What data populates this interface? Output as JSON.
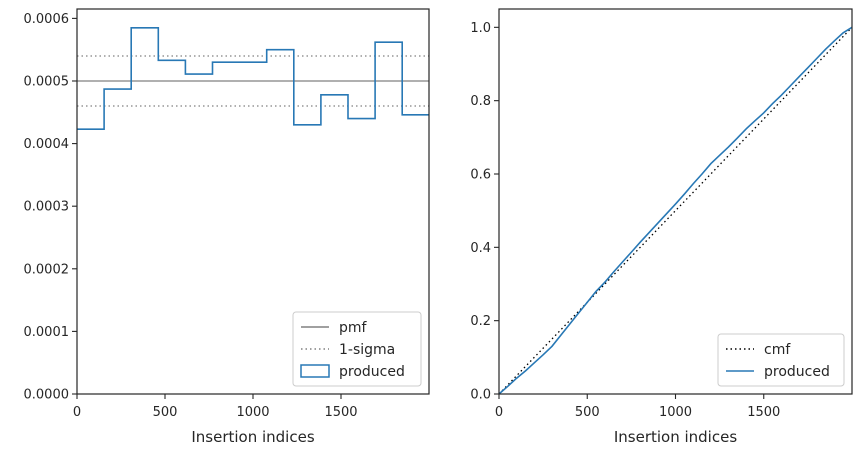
{
  "chart_data": [
    {
      "type": "line",
      "xlabel": "Insertion indices",
      "ylabel": "",
      "xlim": [
        0,
        2000
      ],
      "ylim": [
        0,
        0.000615
      ],
      "x_ticks": [
        0,
        500,
        1000,
        1500
      ],
      "x_tick_labels": [
        "0",
        "500",
        "1000",
        "1500"
      ],
      "y_ticks": [
        0,
        0.0001,
        0.0002,
        0.0003,
        0.0004,
        0.0005,
        0.0006
      ],
      "y_tick_labels": [
        "0.0000",
        "0.0001",
        "0.0002",
        "0.0003",
        "0.0004",
        "0.0005",
        "0.0006"
      ],
      "legend_position": "lower-right",
      "legend": [
        "pmf",
        "1-sigma",
        "produced"
      ],
      "series": [
        {
          "name": "pmf",
          "style": "solid",
          "color": "#808080",
          "x": [
            0,
            2000
          ],
          "y": [
            0.0005,
            0.0005
          ]
        },
        {
          "name": "1-sigma",
          "style": "dotted",
          "color": "#808080",
          "x": [
            0,
            2000
          ],
          "y": [
            0.00054,
            0.00054
          ]
        },
        {
          "name": "1-sigma",
          "style": "dotted",
          "color": "#808080",
          "x": [
            0,
            2000
          ],
          "y": [
            0.00046,
            0.00046
          ]
        },
        {
          "name": "produced",
          "style": "step",
          "color": "#2878b5",
          "bin_edges": [
            0,
            154,
            308,
            462,
            616,
            770,
            924,
            1078,
            1232,
            1386,
            1540,
            1694,
            1848,
            2000
          ],
          "values": [
            0.000423,
            0.000487,
            0.000585,
            0.000533,
            0.000511,
            0.00053,
            0.00053,
            0.00055,
            0.00043,
            0.000478,
            0.00044,
            0.000562,
            0.000446
          ]
        }
      ]
    },
    {
      "type": "line",
      "xlabel": "Insertion indices",
      "ylabel": "",
      "xlim": [
        0,
        2000
      ],
      "ylim": [
        0,
        1.05
      ],
      "x_ticks": [
        0,
        500,
        1000,
        1500
      ],
      "x_tick_labels": [
        "0",
        "500",
        "1000",
        "1500"
      ],
      "y_ticks": [
        0,
        0.2,
        0.4,
        0.6,
        0.8,
        1.0
      ],
      "y_tick_labels": [
        "0.0",
        "0.2",
        "0.4",
        "0.6",
        "0.8",
        "1.0"
      ],
      "legend_position": "lower-right",
      "legend": [
        "cmf",
        "produced"
      ],
      "series": [
        {
          "name": "cmf",
          "style": "dotted",
          "color": "#000000",
          "x": [
            0,
            2000
          ],
          "y": [
            0,
            1
          ]
        },
        {
          "name": "produced",
          "style": "solid",
          "color": "#2878b5",
          "x": [
            0,
            50,
            100,
            150,
            200,
            250,
            300,
            350,
            400,
            450,
            500,
            550,
            600,
            650,
            700,
            750,
            800,
            850,
            900,
            950,
            1000,
            1050,
            1100,
            1150,
            1200,
            1250,
            1300,
            1350,
            1400,
            1450,
            1500,
            1550,
            1600,
            1650,
            1700,
            1750,
            1800,
            1850,
            1900,
            1950,
            2000
          ],
          "y": [
            0,
            0.021,
            0.043,
            0.063,
            0.085,
            0.107,
            0.13,
            0.16,
            0.19,
            0.22,
            0.25,
            0.28,
            0.305,
            0.333,
            0.36,
            0.387,
            0.414,
            0.44,
            0.466,
            0.492,
            0.518,
            0.545,
            0.573,
            0.6,
            0.628,
            0.651,
            0.674,
            0.698,
            0.723,
            0.745,
            0.767,
            0.792,
            0.815,
            0.84,
            0.865,
            0.89,
            0.915,
            0.94,
            0.963,
            0.985,
            1.0
          ]
        }
      ]
    }
  ]
}
